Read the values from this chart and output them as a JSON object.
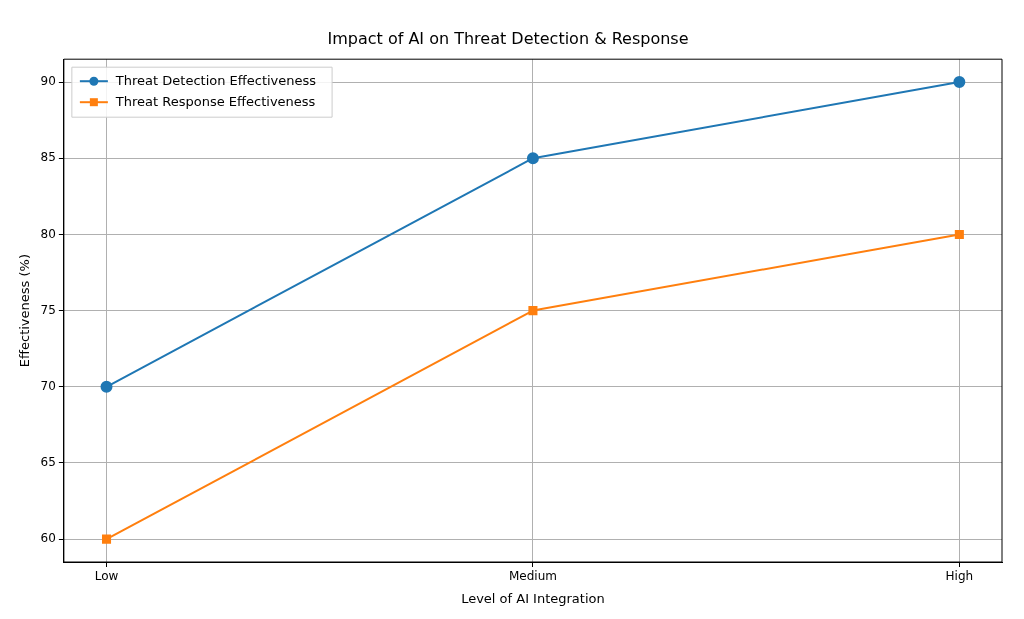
{
  "chart_data": {
    "type": "line",
    "title": "Impact of AI on Threat Detection & Response",
    "xlabel": "Level of AI Integration",
    "ylabel": "Effectiveness (%)",
    "categories": [
      "Low",
      "Medium",
      "High"
    ],
    "series": [
      {
        "name": "Threat Detection Effectiveness",
        "color": "#1f77b4",
        "marker": "circle",
        "values": [
          70,
          85,
          90
        ]
      },
      {
        "name": "Threat Response Effectiveness",
        "color": "#ff7f0e",
        "marker": "square",
        "values": [
          60,
          75,
          80
        ]
      }
    ],
    "ylim": [
      58.5,
      91.5
    ],
    "yticks": [
      60,
      65,
      70,
      75,
      80,
      85,
      90
    ],
    "grid": true,
    "legend": "top left",
    "line_style": "solid"
  }
}
